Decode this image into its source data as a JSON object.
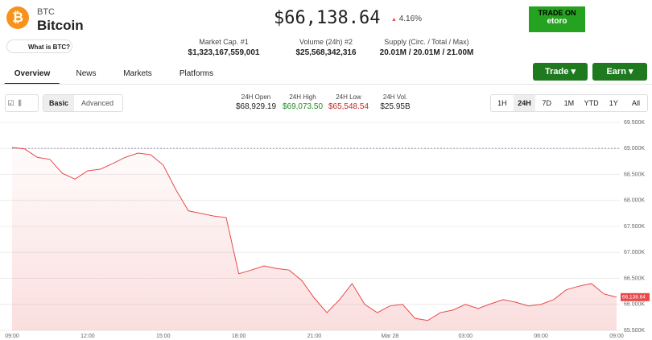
{
  "header": {
    "symbol": "BTC",
    "name": "Bitcoin",
    "what_is": "What is BTC?",
    "price": "$66,138.64",
    "change": "4.16%"
  },
  "stats": [
    {
      "label": "Market Cap. #1",
      "value": "$1,323,167,559,001"
    },
    {
      "label": "Volume (24h) #2",
      "value": "$25,568,342,316"
    },
    {
      "label": "Supply (Circ. / Total / Max)",
      "value": "20.01M / 20.01M / 21.00M"
    }
  ],
  "ad": {
    "title": "TRADE ON",
    "brand": "etoro"
  },
  "tabs": [
    "Overview",
    "News",
    "Markets",
    "Platforms"
  ],
  "buttons": [
    "Trade",
    "Earn"
  ],
  "modes": [
    "Basic",
    "Advanced"
  ],
  "ohlc": [
    {
      "label": "24H Open",
      "value": "$68,929.19"
    },
    {
      "label": "24H High",
      "value": "$69,073.50"
    },
    {
      "label": "24H Low",
      "value": "$65,548.54"
    },
    {
      "label": "24H Vol.",
      "value": "$25.95B"
    }
  ],
  "ranges": [
    "1H",
    "24H",
    "7D",
    "1M",
    "YTD",
    "1Y",
    "All"
  ],
  "chart_data": {
    "type": "line",
    "categories": [
      "09:00",
      null,
      null,
      null,
      null,
      null,
      "12:00",
      null,
      null,
      null,
      null,
      null,
      "15:00",
      null,
      null,
      null,
      null,
      null,
      "18:00",
      null,
      null,
      null,
      null,
      null,
      "21:00",
      null,
      null,
      null,
      null,
      null,
      "Mar 28",
      null,
      null,
      null,
      null,
      null,
      "03:00",
      null,
      null,
      null,
      null,
      null,
      "06:00",
      null,
      null,
      null,
      null,
      null,
      "09:00"
    ],
    "series": [
      {
        "name": "BTC",
        "color": "#e8494a",
        "values": [
          69020,
          68990,
          68830,
          68790,
          68520,
          68410,
          68570,
          68600,
          68710,
          68830,
          68910,
          68880,
          68680,
          68210,
          67800,
          67750,
          67700,
          67670,
          66590,
          66660,
          66740,
          66690,
          66660,
          66460,
          66120,
          65840,
          66090,
          66400,
          66000,
          65840,
          65970,
          66000,
          65730,
          65690,
          65840,
          65890,
          66000,
          65920,
          66010,
          66090,
          66040,
          65970,
          66000,
          66090,
          66280,
          66350,
          66400,
          66200,
          66138.64
        ],
        "value_labels": [
          null,
          null,
          null,
          null,
          null,
          null,
          null,
          null,
          null,
          null,
          null,
          null,
          null,
          null,
          null,
          null,
          null,
          null,
          null,
          null,
          null,
          null,
          null,
          null,
          null,
          null,
          null,
          null,
          null,
          null,
          null,
          null,
          null,
          null,
          null,
          null,
          null,
          null,
          null,
          null,
          null,
          null,
          null,
          null,
          null,
          null,
          null,
          null,
          "66,138.64"
        ]
      }
    ],
    "baseline": 69000,
    "ylim": [
      65500,
      69500
    ],
    "yticks": [
      {
        "value": 65500,
        "label": "65.500K"
      },
      {
        "value": 66000,
        "label": "66.000K"
      },
      {
        "value": 66500,
        "label": "66.500K"
      },
      {
        "value": 67000,
        "label": "67.000K"
      },
      {
        "value": 67500,
        "label": "67.500K"
      },
      {
        "value": 68000,
        "label": "68.000K"
      },
      {
        "value": 68500,
        "label": "68.500K"
      },
      {
        "value": 69000,
        "label": "69.000K"
      },
      {
        "value": 69500,
        "label": "69.500K"
      }
    ],
    "grid": true
  }
}
